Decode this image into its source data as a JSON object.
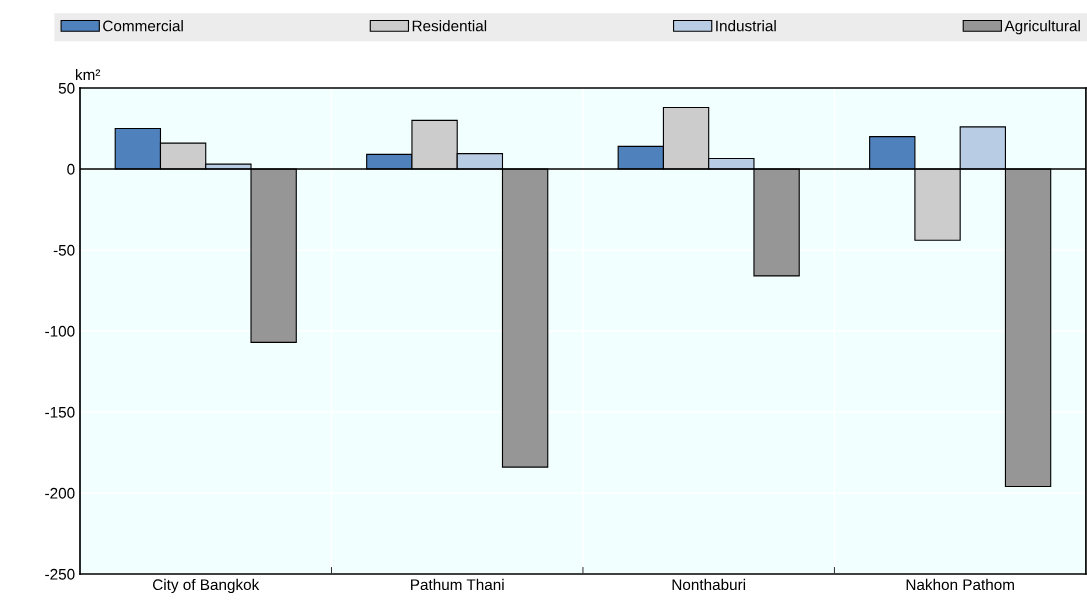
{
  "chart_data": {
    "type": "bar",
    "ylabel": "km²",
    "categories": [
      "City of Bangkok",
      "Pathum Thani",
      "Nonthaburi",
      "Nakhon Pathom"
    ],
    "series": [
      {
        "name": "Commercial",
        "color": "#4f81bd",
        "values": [
          25,
          9,
          14,
          20
        ]
      },
      {
        "name": "Residential",
        "color": "#cccccc",
        "values": [
          16,
          30,
          38,
          -44
        ]
      },
      {
        "name": "Industrial",
        "color": "#b8cce4",
        "values": [
          3,
          9.5,
          6.5,
          26
        ]
      },
      {
        "name": "Agricultural",
        "color": "#969696",
        "values": [
          -107,
          -184,
          -66,
          -196
        ]
      }
    ],
    "ylim": [
      -250,
      50
    ],
    "yticks": [
      -250,
      -200,
      -150,
      -100,
      -50,
      0,
      50
    ],
    "grid": true,
    "legend": "top"
  }
}
